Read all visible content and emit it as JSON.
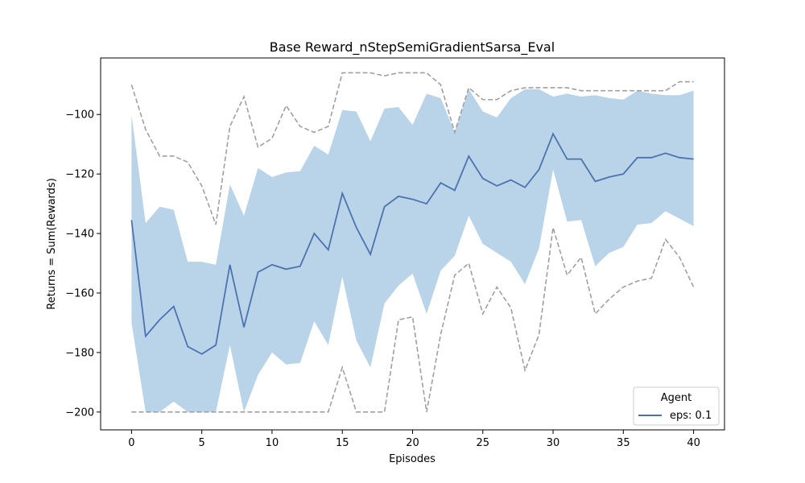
{
  "chart_data": {
    "type": "line",
    "title": "Base Reward_nStepSemiGradientSarsa_Eval",
    "xlabel": "Episodes",
    "ylabel": "Returns = Sum(Rewards)",
    "xlim": [
      -2.2,
      42.2
    ],
    "ylim": [
      -206,
      -81
    ],
    "xticks": [
      0,
      5,
      10,
      15,
      20,
      25,
      30,
      35,
      40
    ],
    "yticks": [
      -200,
      -180,
      -160,
      -140,
      -120,
      -100
    ],
    "grid": false,
    "legend": {
      "title": "Agent",
      "placement": "bottom-right"
    },
    "x": [
      0,
      1,
      2,
      3,
      4,
      5,
      6,
      7,
      8,
      9,
      10,
      11,
      12,
      13,
      14,
      15,
      16,
      17,
      18,
      19,
      20,
      21,
      22,
      23,
      24,
      25,
      26,
      27,
      28,
      29,
      30,
      31,
      32,
      33,
      34,
      35,
      36,
      37,
      38,
      39,
      40
    ],
    "series": [
      {
        "name": "eps: 0.1",
        "color": "#4c72b0",
        "values": [
          -135.5,
          -174.5,
          -169,
          -164.5,
          -178,
          -180.5,
          -177.5,
          -150.5,
          -171.5,
          -153,
          -150.5,
          -152,
          -151,
          -140,
          -145.5,
          -126.5,
          -138,
          -147,
          -131,
          -127.5,
          -128.5,
          -130,
          -123,
          -125.5,
          -114,
          -121.5,
          -124,
          -122,
          -124.5,
          -118.5,
          -106.5,
          -115,
          -115,
          -122.5,
          -121,
          -120,
          -114.5,
          -114.5,
          -113,
          -114.5,
          -115
        ]
      }
    ],
    "band": {
      "color": "#b9d4e8",
      "upper": [
        -100,
        -136.5,
        -131,
        -132,
        -149.5,
        -149.5,
        -150.5,
        -123.5,
        -134,
        -118,
        -121,
        -119.5,
        -119,
        -110.5,
        -113.5,
        -98.5,
        -99,
        -109,
        -98,
        -97.5,
        -103.5,
        -93,
        -94.5,
        -106,
        -91.5,
        -99,
        -101,
        -94.5,
        -91.5,
        -91.5,
        -94,
        -93,
        -94,
        -93.5,
        -94.5,
        -95,
        -92,
        -93,
        -93.5,
        -93.5,
        -92
      ],
      "lower": [
        -170,
        -200,
        -200,
        -196.5,
        -200,
        -200,
        -200,
        -177.5,
        -200,
        -187.5,
        -180,
        -184,
        -183.5,
        -169.5,
        -177.5,
        -154.5,
        -176,
        -185,
        -163.5,
        -157.5,
        -153.5,
        -167,
        -152.5,
        -147.5,
        -134,
        -143.5,
        -146.5,
        -149.5,
        -157,
        -145,
        -118.5,
        -136,
        -135.5,
        -151,
        -146.5,
        -144.5,
        -137,
        -136.5,
        -132.5,
        -135,
        -137.5
      ]
    },
    "bounds": {
      "color": "#a0a0a0",
      "max": [
        -90,
        -105,
        -114,
        -114,
        -116,
        -124,
        -137,
        -104,
        -94,
        -111,
        -108,
        -97,
        -104,
        -106,
        -104,
        -86,
        -86,
        -86,
        -87,
        -86,
        -86,
        -86,
        -90,
        -106,
        -91,
        -95,
        -95,
        -92,
        -91,
        -91,
        -91,
        -91,
        -92,
        -92,
        -92,
        -92,
        -92,
        -92,
        -92,
        -89,
        -89
      ],
      "min": [
        -200,
        -200,
        -200,
        -200,
        -200,
        -200,
        -200,
        -200,
        -200,
        -200,
        -200,
        -200,
        -200,
        -200,
        -200,
        -185,
        -200,
        -200,
        -200,
        -169,
        -168,
        -200,
        -174,
        -154,
        -150,
        -167,
        -158,
        -165,
        -186,
        -174,
        -138,
        -154,
        -148,
        -167,
        -162,
        -158,
        -156,
        -155,
        -142,
        -148,
        -158
      ]
    }
  }
}
